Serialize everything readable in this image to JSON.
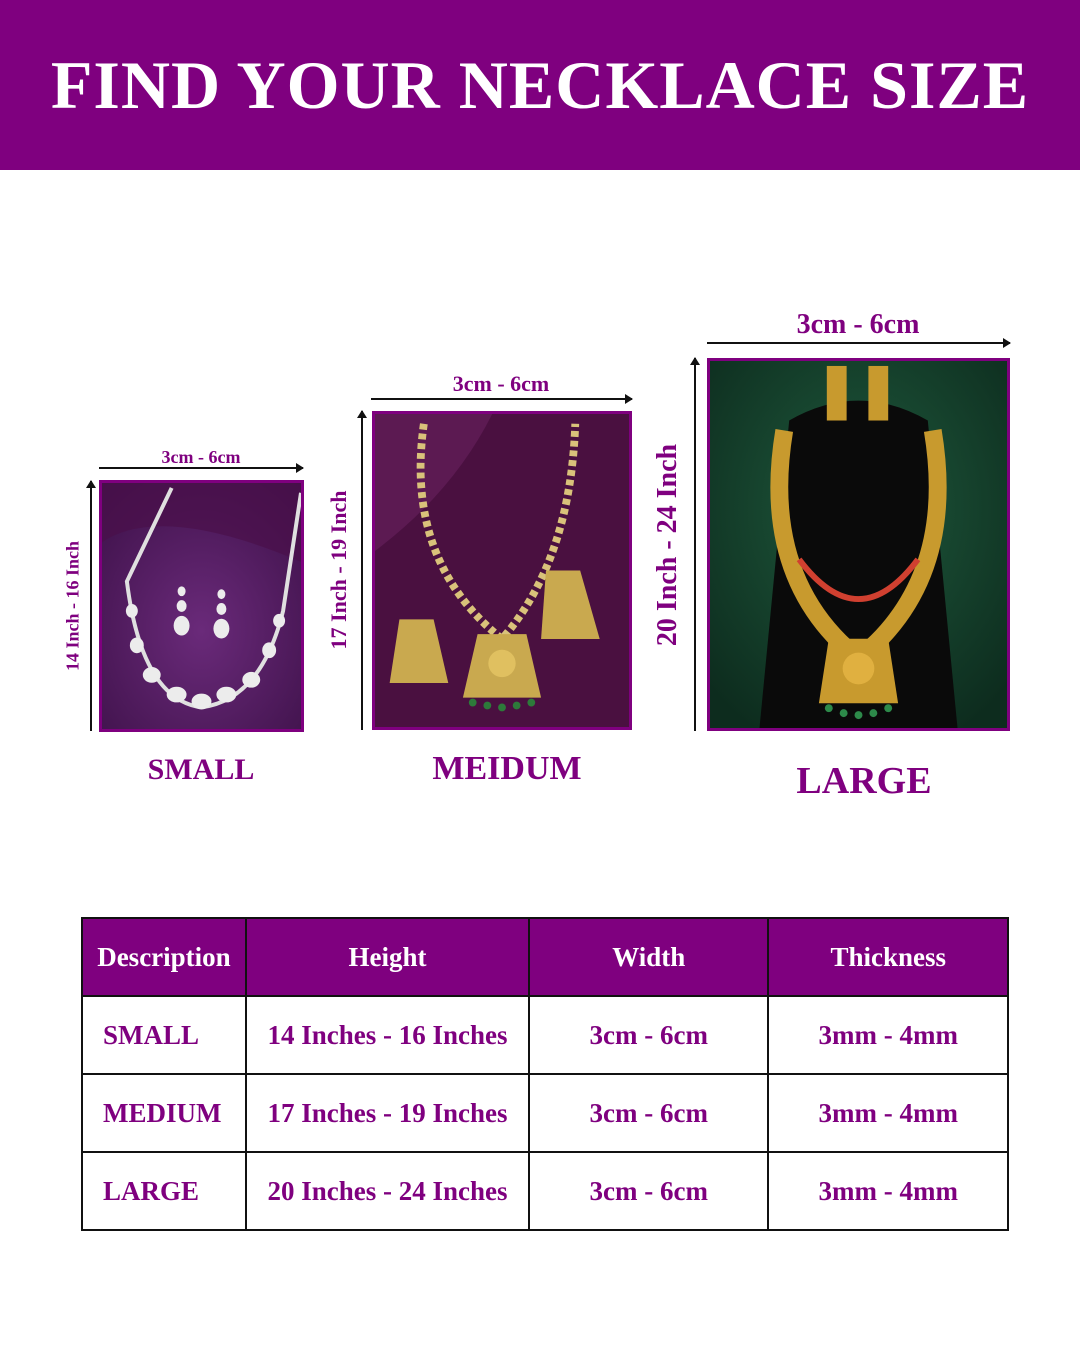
{
  "header": {
    "title": "FIND YOUR NECKLACE SIZE"
  },
  "colors": {
    "brand": "#7f007f"
  },
  "sizes": [
    {
      "label": "SMALL",
      "width": "3cm - 6cm",
      "height": "14 Inch - 16 Inch",
      "image": "silver-necklace-set-photo"
    },
    {
      "label": "MEIDUM",
      "width": "3cm - 6cm",
      "height": "17 Inch - 19 Inch",
      "image": "gold-pendant-necklace-photo"
    },
    {
      "label": "LARGE",
      "width": "3cm - 6cm",
      "height": "20 Inch - 24 Inch",
      "image": "gold-temple-necklace-photo"
    }
  ],
  "table": {
    "headers": [
      "Description",
      "Height",
      "Width",
      "Thickness"
    ],
    "rows": [
      [
        "SMALL",
        "14 Inches - 16 Inches",
        "3cm - 6cm",
        "3mm - 4mm"
      ],
      [
        "MEDIUM",
        "17 Inches - 19 Inches",
        "3cm - 6cm",
        "3mm - 4mm"
      ],
      [
        "LARGE",
        "20 Inches - 24 Inches",
        "3cm - 6cm",
        "3mm - 4mm"
      ]
    ]
  }
}
